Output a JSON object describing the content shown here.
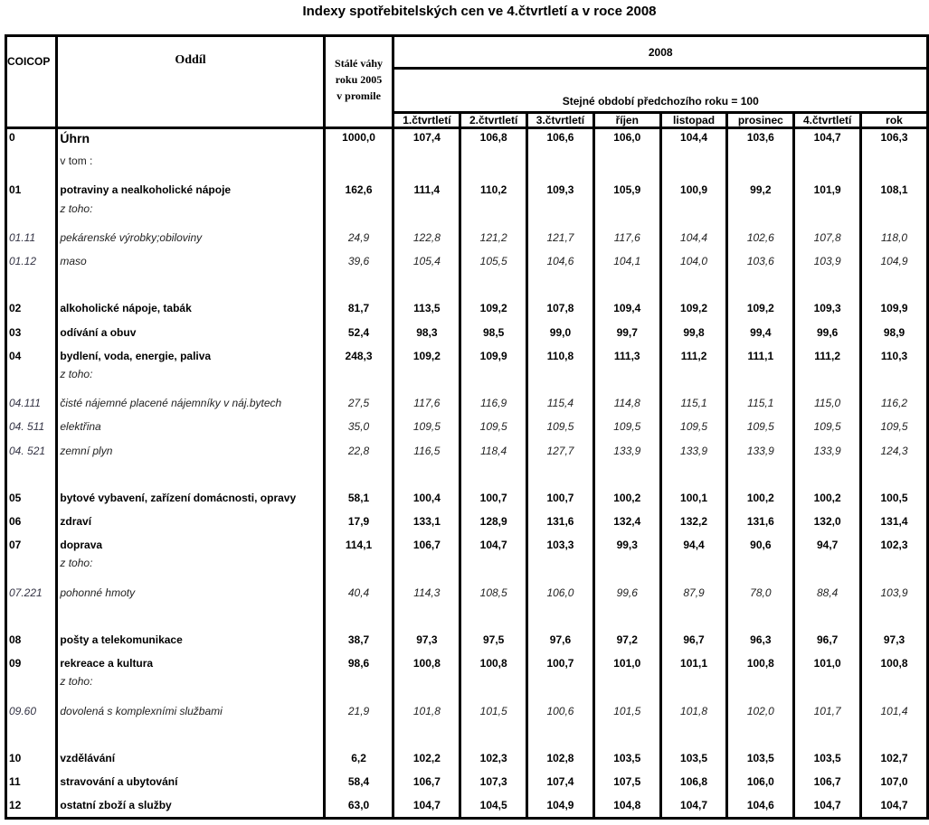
{
  "title": "Indexy spotřebitelských cen ve 4.čtvrtletí a v roce 2008",
  "header": {
    "coicop": "COICOP",
    "oddil": "Oddíl",
    "weights_line1": "Stálé váhy",
    "weights_line2": "roku 2005",
    "weights_line3": "v promile",
    "year": "2008",
    "base": "Stejné období předchozího roku = 100",
    "columns": [
      "1.čtvrtletí",
      "2.čtvrtletí",
      "3.čtvrtletí",
      "říjen",
      "listopad",
      "prosinec",
      "4.čtvrtletí",
      "rok"
    ]
  },
  "rows": [
    {
      "type": "main",
      "code": "0",
      "name": "Úhrn",
      "weight": "1000,0",
      "values": [
        "107,4",
        "106,8",
        "106,6",
        "106,0",
        "104,4",
        "103,6",
        "104,7",
        "106,3"
      ]
    },
    {
      "type": "note",
      "code": "",
      "name": "v tom :",
      "weight": "",
      "values": []
    },
    {
      "type": "bold",
      "code": "01",
      "name": "potraviny a nealkoholické nápoje",
      "weight": "162,6",
      "values": [
        "111,4",
        "110,2",
        "109,3",
        "105,9",
        "100,9",
        "99,2",
        "101,9",
        "108,1"
      ]
    },
    {
      "type": "note sub",
      "code": "",
      "name": "z toho:",
      "weight": "",
      "values": []
    },
    {
      "type": "sub",
      "code": "01.11",
      "name": "pekárenské výrobky;obiloviny",
      "weight": "24,9",
      "values": [
        "122,8",
        "121,2",
        "121,7",
        "117,6",
        "104,4",
        "102,6",
        "107,8",
        "118,0"
      ]
    },
    {
      "type": "sub",
      "code": "01.12",
      "name": "maso",
      "weight": "39,6",
      "values": [
        "105,4",
        "105,5",
        "104,6",
        "104,1",
        "104,0",
        "103,6",
        "103,9",
        "104,9"
      ]
    },
    {
      "type": "blank",
      "code": "",
      "name": "",
      "weight": "",
      "values": []
    },
    {
      "type": "bold",
      "code": "02",
      "name": "alkoholické nápoje, tabák",
      "weight": "81,7",
      "values": [
        "113,5",
        "109,2",
        "107,8",
        "109,4",
        "109,2",
        "109,2",
        "109,3",
        "109,9"
      ]
    },
    {
      "type": "bold",
      "code": "03",
      "name": "odívání a obuv",
      "weight": "52,4",
      "values": [
        "98,3",
        "98,5",
        "99,0",
        "99,7",
        "99,8",
        "99,4",
        "99,6",
        "98,9"
      ]
    },
    {
      "type": "bold",
      "code": "04",
      "name": "bydlení, voda, energie, paliva",
      "weight": "248,3",
      "values": [
        "109,2",
        "109,9",
        "110,8",
        "111,3",
        "111,2",
        "111,1",
        "111,2",
        "110,3"
      ]
    },
    {
      "type": "note sub",
      "code": "",
      "name": "z toho:",
      "weight": "",
      "values": []
    },
    {
      "type": "sub",
      "code": "04.111",
      "name": "čisté nájemné placené nájemníky v náj.bytech",
      "weight": "27,5",
      "values": [
        "117,6",
        "116,9",
        "115,4",
        "114,8",
        "115,1",
        "115,1",
        "115,0",
        "116,2"
      ]
    },
    {
      "type": "sub",
      "code": "04. 511",
      "name": "elektřina",
      "weight": "35,0",
      "values": [
        "109,5",
        "109,5",
        "109,5",
        "109,5",
        "109,5",
        "109,5",
        "109,5",
        "109,5"
      ]
    },
    {
      "type": "sub",
      "code": "04. 521",
      "name": "zemní plyn",
      "weight": "22,8",
      "values": [
        "116,5",
        "118,4",
        "127,7",
        "133,9",
        "133,9",
        "133,9",
        "133,9",
        "124,3"
      ]
    },
    {
      "type": "blank",
      "code": "",
      "name": "",
      "weight": "",
      "values": []
    },
    {
      "type": "bold",
      "code": "05",
      "name": "bytové vybavení, zařízení domácnosti, opravy",
      "weight": "58,1",
      "values": [
        "100,4",
        "100,7",
        "100,7",
        "100,2",
        "100,1",
        "100,2",
        "100,2",
        "100,5"
      ]
    },
    {
      "type": "bold",
      "code": "06",
      "name": "zdraví",
      "weight": "17,9",
      "values": [
        "133,1",
        "128,9",
        "131,6",
        "132,4",
        "132,2",
        "131,6",
        "132,0",
        "131,4"
      ]
    },
    {
      "type": "bold",
      "code": "07",
      "name": "doprava",
      "weight": "114,1",
      "values": [
        "106,7",
        "104,7",
        "103,3",
        "99,3",
        "94,4",
        "90,6",
        "94,7",
        "102,3"
      ]
    },
    {
      "type": "note sub",
      "code": "",
      "name": "z toho:",
      "weight": "",
      "values": []
    },
    {
      "type": "sub",
      "code": "07.221",
      "name": "pohonné hmoty",
      "weight": "40,4",
      "values": [
        "114,3",
        "108,5",
        "106,0",
        "99,6",
        "87,9",
        "78,0",
        "88,4",
        "103,9"
      ]
    },
    {
      "type": "blank",
      "code": "",
      "name": "",
      "weight": "",
      "values": []
    },
    {
      "type": "bold",
      "code": "08",
      "name": "pošty a telekomunikace",
      "weight": "38,7",
      "values": [
        "97,3",
        "97,5",
        "97,6",
        "97,2",
        "96,7",
        "96,3",
        "96,7",
        "97,3"
      ]
    },
    {
      "type": "bold",
      "code": "09",
      "name": "rekreace a kultura",
      "weight": "98,6",
      "values": [
        "100,8",
        "100,8",
        "100,7",
        "101,0",
        "101,1",
        "100,8",
        "101,0",
        "100,8"
      ]
    },
    {
      "type": "note sub",
      "code": "",
      "name": "z toho:",
      "weight": "",
      "values": []
    },
    {
      "type": "sub",
      "code": "09.60",
      "name": "dovolená s komplexními službami",
      "weight": "21,9",
      "values": [
        "101,8",
        "101,5",
        "100,6",
        "101,5",
        "101,8",
        "102,0",
        "101,7",
        "101,4"
      ]
    },
    {
      "type": "blank",
      "code": "",
      "name": "",
      "weight": "",
      "values": []
    },
    {
      "type": "bold",
      "code": "10",
      "name": "vzdělávání",
      "weight": "6,2",
      "values": [
        "102,2",
        "102,3",
        "102,8",
        "103,5",
        "103,5",
        "103,5",
        "103,5",
        "102,7"
      ]
    },
    {
      "type": "bold",
      "code": "11",
      "name": "stravování a ubytování",
      "weight": "58,4",
      "values": [
        "106,7",
        "107,3",
        "107,4",
        "107,5",
        "106,8",
        "106,0",
        "106,7",
        "107,0"
      ]
    },
    {
      "type": "bold",
      "code": "12",
      "name": "ostatní zboží a služby",
      "weight": "63,0",
      "values": [
        "104,7",
        "104,5",
        "104,9",
        "104,8",
        "104,7",
        "104,6",
        "104,7",
        "104,7"
      ]
    }
  ]
}
